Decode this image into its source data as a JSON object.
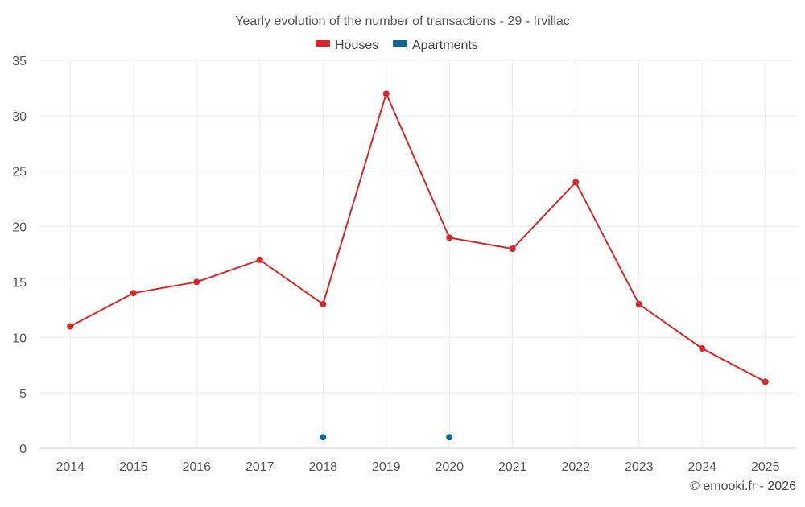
{
  "chart_data": {
    "type": "line",
    "title": "Yearly evolution of the number of transactions - 29 - Irvillac",
    "categories": [
      "2014",
      "2015",
      "2016",
      "2017",
      "2018",
      "2019",
      "2020",
      "2021",
      "2022",
      "2023",
      "2024",
      "2025"
    ],
    "series": [
      {
        "name": "Houses",
        "color": "#d62728",
        "values": [
          11,
          14,
          15,
          17,
          13,
          32,
          19,
          18,
          24,
          13,
          9,
          6
        ]
      },
      {
        "name": "Apartments",
        "color": "#0e6a9e",
        "values": [
          null,
          null,
          null,
          null,
          1,
          null,
          1,
          null,
          null,
          null,
          null,
          null
        ]
      }
    ],
    "ylim": [
      0,
      35
    ],
    "yticks": [
      0,
      5,
      10,
      15,
      20,
      25,
      30,
      35
    ],
    "xlabel": "",
    "ylabel": "",
    "grid": true,
    "legend_position": "top-center",
    "credit": "© emooki.fr - 2026"
  }
}
